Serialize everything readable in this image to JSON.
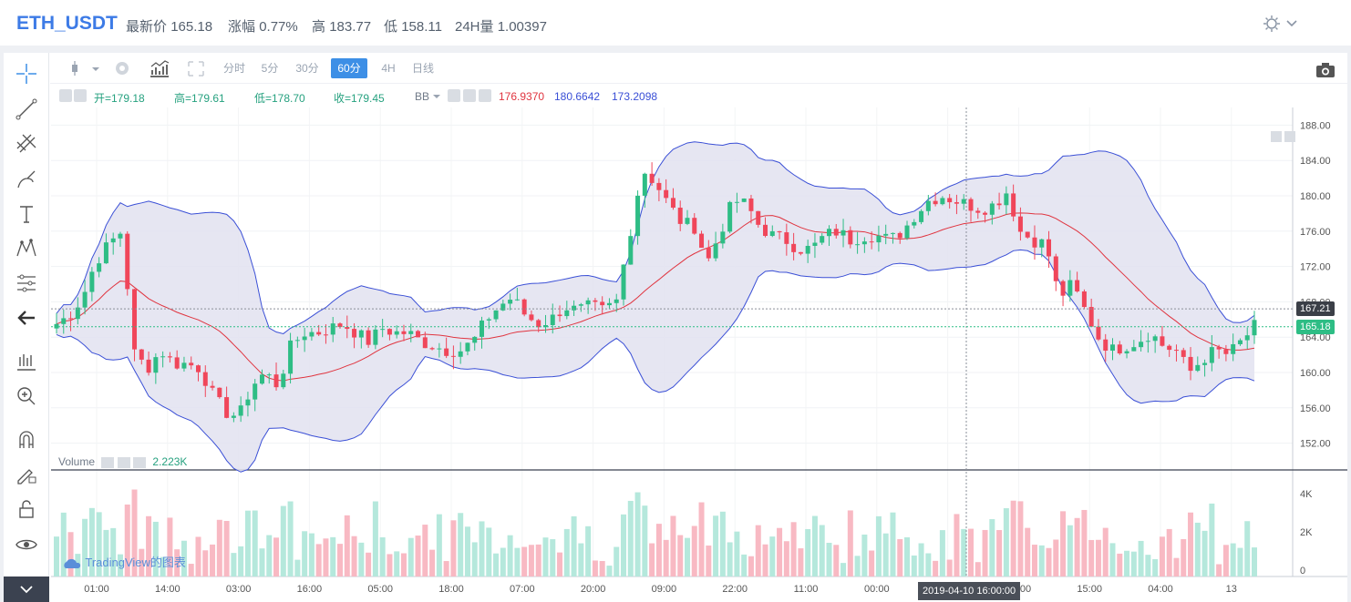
{
  "header": {
    "pair": "ETH_USDT",
    "stats": [
      {
        "label": "最新价",
        "value": "165.18"
      },
      {
        "label": "涨幅",
        "value": "0.77%"
      },
      {
        "label": "高",
        "value": "183.77"
      },
      {
        "label": "低",
        "value": "158.11"
      },
      {
        "label": "24H量",
        "value": "1.00397"
      }
    ],
    "settings_icon": "settings-sun-icon"
  },
  "toolbar": {
    "intervals": [
      "分时",
      "5分",
      "30分",
      "60分",
      "4H",
      "日线"
    ],
    "active_interval": "60分"
  },
  "legend": {
    "open_label": "开=179.18",
    "high_label": "高=179.61",
    "low_label": "低=178.70",
    "close_label": "收=179.45",
    "bb_label": "BB",
    "bb_values": [
      "176.9370",
      "180.6642",
      "173.2098"
    ]
  },
  "volume": {
    "label": "Volume",
    "value": "2.223K"
  },
  "watermark": "TradingView的图表",
  "crosshair_time": "2019-04-10 16:00:00",
  "last_price": "165.18",
  "crosshair_price": "167.21",
  "colors": {
    "up": "#2ebd85",
    "down": "#f0465a",
    "bb_mid": "#e0343f",
    "bb_band": "#3a4fd6",
    "bb_fill": "#e2e2f0",
    "accent": "#3d8fe6"
  },
  "chart_data": {
    "type": "candlestick",
    "price_ticks": [
      152,
      156,
      160,
      164,
      168,
      172,
      176,
      180,
      184,
      188
    ],
    "ylim": [
      150,
      190
    ],
    "volume_ticks": [
      "0",
      "2K",
      "4K"
    ],
    "time_ticks": [
      "01:00",
      "14:00",
      "03:00",
      "16:00",
      "05:00",
      "18:00",
      "07:00",
      "20:00",
      "09:00",
      "22:00",
      "11:00",
      "00:00",
      "13:00",
      "02:00",
      "15:00",
      "04:00",
      "13"
    ],
    "close_path": [
      165.5,
      166.5,
      168.5,
      172.5,
      174.5,
      176.0,
      162.0,
      160.5,
      162.5,
      161.0,
      161.0,
      160.5,
      157.5,
      155.5,
      155.0,
      158.5,
      160.0,
      158.5,
      163.0,
      164.5,
      164.5,
      165.0,
      165.5,
      164.5,
      163.5,
      165.0,
      164.5,
      164.5,
      163.5,
      163.0,
      162.5,
      162.5,
      163.5,
      166.0,
      167.5,
      168.5,
      166.5,
      165.5,
      166.0,
      167.5,
      167.0,
      167.5,
      167.0,
      168.0,
      175.5,
      183.0,
      181.5,
      179.0,
      177.0,
      176.5,
      172.5,
      176.0,
      179.5,
      179.0,
      176.5,
      175.5,
      175.0,
      174.0,
      174.0,
      175.5,
      176.0,
      175.0,
      175.5,
      175.5,
      175.0,
      176.0,
      178.0,
      179.5,
      180.0,
      179.5,
      179.0,
      178.5,
      179.0,
      180.5,
      176.0,
      175.0,
      174.5,
      168.5,
      170.0,
      167.0,
      164.0,
      162.5,
      163.0,
      163.5,
      164.5,
      163.0,
      162.5,
      160.0,
      161.5,
      162.5,
      162.0,
      163.5,
      165.2
    ]
  }
}
